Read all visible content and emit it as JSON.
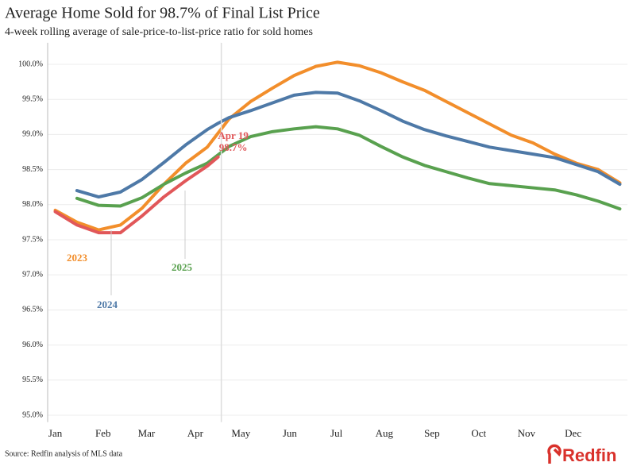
{
  "chart_data": {
    "type": "line",
    "title": "Average Home Sold for 98.7% of Final List Price",
    "subtitle": "4-week rolling average of sale-price-to-list-price ratio for sold homes",
    "source": "Source: Redfin analysis of MLS data",
    "brand": "Redfin",
    "x": [
      0,
      2,
      4,
      6,
      8,
      10,
      12,
      14,
      15,
      16,
      18,
      20,
      22,
      24,
      26,
      28,
      30,
      32,
      34,
      36,
      38,
      40,
      42,
      44,
      46,
      48,
      50,
      52
    ],
    "xlim": [
      -0.7,
      52.7
    ],
    "xticks": [
      {
        "value": 0,
        "label": "Jan"
      },
      {
        "value": 4.4,
        "label": "Feb"
      },
      {
        "value": 8.4,
        "label": "Mar"
      },
      {
        "value": 12.9,
        "label": "Apr"
      },
      {
        "value": 17.1,
        "label": "May"
      },
      {
        "value": 21.6,
        "label": "Jun"
      },
      {
        "value": 25.9,
        "label": "Jul"
      },
      {
        "value": 30.3,
        "label": "Aug"
      },
      {
        "value": 34.7,
        "label": "Sep"
      },
      {
        "value": 39,
        "label": "Oct"
      },
      {
        "value": 43.4,
        "label": "Nov"
      },
      {
        "value": 47.7,
        "label": "Dec"
      }
    ],
    "ylim": [
      94.9,
      100.25
    ],
    "yticks": [
      {
        "value": 95,
        "label": "95.0%"
      },
      {
        "value": 95.5,
        "label": "95.5%"
      },
      {
        "value": 96,
        "label": "96.0%"
      },
      {
        "value": 96.5,
        "label": "96.5%"
      },
      {
        "value": 97,
        "label": "97.0%"
      },
      {
        "value": 97.5,
        "label": "97.5%"
      },
      {
        "value": 98,
        "label": "98.0%"
      },
      {
        "value": 98.5,
        "label": "98.5%"
      },
      {
        "value": 99,
        "label": "99.0%"
      },
      {
        "value": 99.5,
        "label": "99.5%"
      },
      {
        "value": 100,
        "label": "100.0%"
      }
    ],
    "grid": true,
    "series": [
      {
        "name": "2023",
        "color": "#f28e2b",
        "values": [
          97.92,
          97.75,
          97.64,
          97.71,
          97.95,
          98.29,
          98.59,
          98.82,
          99.02,
          99.22,
          99.47,
          99.66,
          99.84,
          99.97,
          100.03,
          99.98,
          99.88,
          99.75,
          99.63,
          99.47,
          99.31,
          99.15,
          98.99,
          98.88,
          98.72,
          98.59,
          98.5,
          98.31
        ]
      },
      {
        "name": "2024",
        "color": "#4e79a7",
        "values": [
          null,
          98.2,
          98.11,
          98.18,
          98.36,
          98.6,
          98.85,
          99.07,
          99.16,
          99.24,
          99.34,
          99.45,
          99.56,
          99.6,
          99.59,
          99.48,
          99.34,
          99.19,
          99.07,
          98.98,
          98.9,
          98.82,
          98.77,
          98.72,
          98.67,
          98.57,
          98.47,
          98.29
        ]
      },
      {
        "name": "2025",
        "color": "#59a14f",
        "values": [
          null,
          98.09,
          97.99,
          97.98,
          98.1,
          98.29,
          98.45,
          98.59,
          98.71,
          98.83,
          98.97,
          99.04,
          99.08,
          99.11,
          99.08,
          98.99,
          98.83,
          98.68,
          98.56,
          98.47,
          98.38,
          98.3,
          98.27,
          98.24,
          98.21,
          98.14,
          98.05,
          97.94
        ]
      },
      {
        "color": "#e15759",
        "values": [
          97.9,
          97.71,
          97.6,
          97.6,
          97.84,
          98.11,
          98.34,
          98.55,
          98.68,
          null,
          null,
          null,
          null,
          null,
          null,
          null,
          null,
          null,
          null,
          null,
          null,
          null,
          null,
          null,
          null,
          null,
          null,
          null
        ]
      }
    ],
    "annotations": [
      "Apr 19",
      "98.7%"
    ]
  }
}
